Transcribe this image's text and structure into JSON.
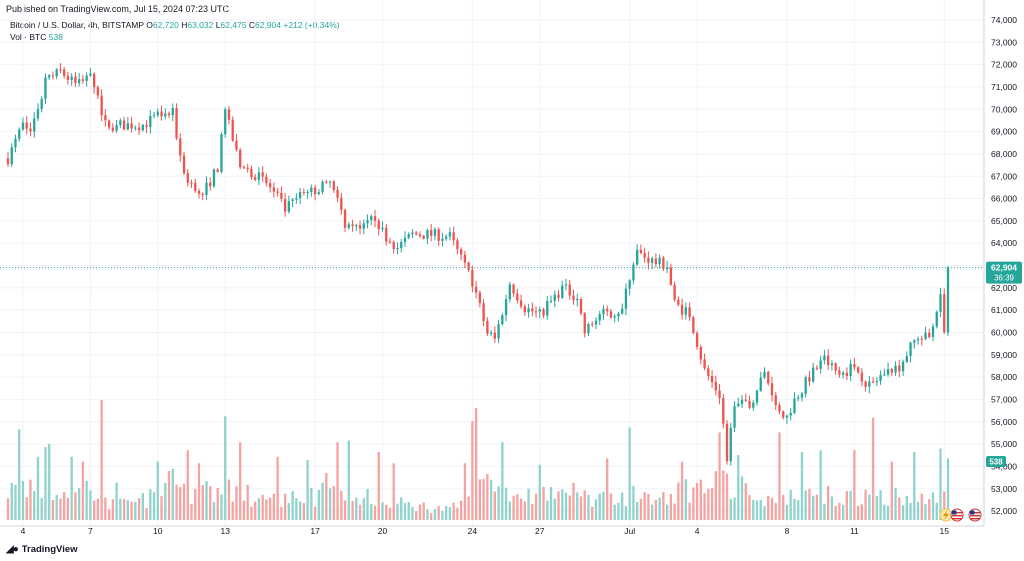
{
  "header": {
    "published": "Published on TradingView.com, Jul 15, 2024 07:23 UTC",
    "symbol": "Bitcoin / U.S. Dollar, 4h, BITSTAMP",
    "o_label": "O",
    "o_value": "62,720",
    "h_label": "H",
    "h_value": "63,032",
    "l_label": "L",
    "l_value": "62,475",
    "c_label": "C",
    "c_value": "62,904",
    "change": "+212 (+0.34%)",
    "vol_label": "Vol · BTC",
    "vol_value": "538"
  },
  "brand": {
    "name": "TradingView",
    "logo_icon": "tv-logo-icon"
  },
  "colors": {
    "up": "#26a69a",
    "down": "#ef5350",
    "vol_up": "#8fd3cc",
    "vol_down": "#f5a3a1",
    "grid": "#f0f3fa",
    "text": "#131722",
    "price_line": "#26a69a"
  },
  "chart_data": {
    "type": "candlestick",
    "title": "Bitcoin / U.S. Dollar, 4h, BITSTAMP",
    "ylim": [
      51600,
      74000
    ],
    "y_ticks": [
      52000,
      53000,
      54000,
      55000,
      56000,
      57000,
      58000,
      59000,
      60000,
      61000,
      62000,
      63000,
      64000,
      65000,
      66000,
      67000,
      68000,
      69000,
      70000,
      71000,
      72000,
      73000,
      74000
    ],
    "y_tick_labels": [
      "52,000",
      "53,000",
      "54,000",
      "55,000",
      "56,000",
      "57,000",
      "58,000",
      "59,000",
      "60,000",
      "61,000",
      "62,000",
      "63,000",
      "64,000",
      "65,000",
      "66,000",
      "67,000",
      "68,000",
      "69,000",
      "70,000",
      "71,000",
      "72,000",
      "73,000",
      "74,000"
    ],
    "x_ticks": [
      {
        "label": "4",
        "bar": 4
      },
      {
        "label": "7",
        "bar": 22
      },
      {
        "label": "10",
        "bar": 40
      },
      {
        "label": "13",
        "bar": 58
      },
      {
        "label": "17",
        "bar": 82
      },
      {
        "label": "20",
        "bar": 100
      },
      {
        "label": "24",
        "bar": 124
      },
      {
        "label": "27",
        "bar": 142
      },
      {
        "label": "Jul",
        "bar": 166
      },
      {
        "label": "4",
        "bar": 184
      },
      {
        "label": "8",
        "bar": 208
      },
      {
        "label": "11",
        "bar": 226
      },
      {
        "label": "15",
        "bar": 250
      }
    ],
    "last_price": "62,904",
    "last_price_value": 62904,
    "countdown": "36:39",
    "volume_badge": "538",
    "volume_max": 7400,
    "ohlc_anchors": [
      [
        0,
        67800
      ],
      [
        4,
        69300
      ],
      [
        6,
        69000
      ],
      [
        10,
        71200
      ],
      [
        14,
        71700
      ],
      [
        18,
        71100
      ],
      [
        20,
        71400
      ],
      [
        22,
        71800
      ],
      [
        26,
        69300
      ],
      [
        30,
        69300
      ],
      [
        36,
        69300
      ],
      [
        40,
        69700
      ],
      [
        44,
        69800
      ],
      [
        46,
        67900
      ],
      [
        48,
        66700
      ],
      [
        52,
        66200
      ],
      [
        56,
        67400
      ],
      [
        58,
        69900
      ],
      [
        62,
        67400
      ],
      [
        66,
        67100
      ],
      [
        70,
        66500
      ],
      [
        74,
        65500
      ],
      [
        78,
        66100
      ],
      [
        82,
        66400
      ],
      [
        86,
        66700
      ],
      [
        90,
        64900
      ],
      [
        94,
        64500
      ],
      [
        98,
        65200
      ],
      [
        100,
        64500
      ],
      [
        104,
        63800
      ],
      [
        108,
        64400
      ],
      [
        112,
        64400
      ],
      [
        118,
        64300
      ],
      [
        124,
        62300
      ],
      [
        128,
        60000
      ],
      [
        130,
        59700
      ],
      [
        134,
        62200
      ],
      [
        138,
        61100
      ],
      [
        142,
        60800
      ],
      [
        148,
        62000
      ],
      [
        152,
        61600
      ],
      [
        154,
        60000
      ],
      [
        158,
        60800
      ],
      [
        164,
        61000
      ],
      [
        166,
        62500
      ],
      [
        168,
        63600
      ],
      [
        172,
        63200
      ],
      [
        176,
        63000
      ],
      [
        178,
        61300
      ],
      [
        182,
        60800
      ],
      [
        186,
        58300
      ],
      [
        190,
        57200
      ],
      [
        192,
        54400
      ],
      [
        194,
        56800
      ],
      [
        198,
        56700
      ],
      [
        202,
        58200
      ],
      [
        206,
        56500
      ],
      [
        208,
        56200
      ],
      [
        210,
        57000
      ],
      [
        214,
        58000
      ],
      [
        218,
        58800
      ],
      [
        222,
        58100
      ],
      [
        226,
        58500
      ],
      [
        230,
        57600
      ],
      [
        234,
        58200
      ],
      [
        238,
        58500
      ],
      [
        242,
        59600
      ],
      [
        246,
        59800
      ],
      [
        248,
        61000
      ],
      [
        250,
        62904
      ]
    ],
    "volume_anchors": [
      [
        0,
        1800
      ],
      [
        6,
        2200
      ],
      [
        10,
        1500
      ],
      [
        14,
        1900
      ],
      [
        20,
        1600
      ],
      [
        22,
        2000
      ],
      [
        24,
        1200
      ],
      [
        32,
        900
      ],
      [
        40,
        1500
      ],
      [
        44,
        2300
      ],
      [
        50,
        1600
      ],
      [
        56,
        1800
      ],
      [
        58,
        2500
      ],
      [
        60,
        1500
      ],
      [
        66,
        1500
      ],
      [
        70,
        1200
      ],
      [
        76,
        1400
      ],
      [
        82,
        1500
      ],
      [
        86,
        1800
      ],
      [
        90,
        1600
      ],
      [
        96,
        1400
      ],
      [
        100,
        1500
      ],
      [
        104,
        1000
      ],
      [
        112,
        800
      ],
      [
        118,
        600
      ],
      [
        122,
        1200
      ],
      [
        124,
        2800
      ],
      [
        128,
        2400
      ],
      [
        132,
        1800
      ],
      [
        140,
        1500
      ],
      [
        146,
        1600
      ],
      [
        152,
        1600
      ],
      [
        158,
        1200
      ],
      [
        164,
        1300
      ],
      [
        168,
        1700
      ],
      [
        174,
        1200
      ],
      [
        180,
        1900
      ],
      [
        184,
        2000
      ],
      [
        190,
        2200
      ],
      [
        194,
        2400
      ],
      [
        200,
        1300
      ],
      [
        206,
        1300
      ],
      [
        210,
        1700
      ],
      [
        214,
        1600
      ],
      [
        218,
        1800
      ],
      [
        224,
        1400
      ],
      [
        230,
        1300
      ],
      [
        234,
        1600
      ],
      [
        240,
        1400
      ],
      [
        246,
        1200
      ],
      [
        250,
        1600
      ]
    ],
    "volume_spikes": [
      [
        3,
        5600
      ],
      [
        8,
        3900
      ],
      [
        10,
        4500
      ],
      [
        11,
        4700
      ],
      [
        17,
        3900
      ],
      [
        20,
        3600
      ],
      [
        25,
        7400
      ],
      [
        29,
        2300
      ],
      [
        40,
        3600
      ],
      [
        48,
        4300
      ],
      [
        51,
        3500
      ],
      [
        58,
        6400
      ],
      [
        62,
        4800
      ],
      [
        72,
        3900
      ],
      [
        80,
        3700
      ],
      [
        85,
        2900
      ],
      [
        88,
        4800
      ],
      [
        91,
        4900
      ],
      [
        99,
        4200
      ],
      [
        103,
        3500
      ],
      [
        122,
        3500
      ],
      [
        124,
        6100
      ],
      [
        125,
        6900
      ],
      [
        132,
        4800
      ],
      [
        142,
        3400
      ],
      [
        160,
        3800
      ],
      [
        166,
        5700
      ],
      [
        180,
        3600
      ],
      [
        190,
        5400
      ],
      [
        195,
        4000
      ],
      [
        206,
        5400
      ],
      [
        212,
        4200
      ],
      [
        217,
        4300
      ],
      [
        226,
        4300
      ],
      [
        231,
        6300
      ],
      [
        236,
        3600
      ],
      [
        242,
        4200
      ],
      [
        249,
        4400
      ],
      [
        251,
        3800
      ]
    ],
    "n_bars": 252,
    "series": [
      {
        "name": "BTCUSD",
        "kind": "ohlc",
        "up_color": "#26a69a",
        "down_color": "#ef5350"
      },
      {
        "name": "Vol · BTC",
        "kind": "volume"
      }
    ]
  }
}
